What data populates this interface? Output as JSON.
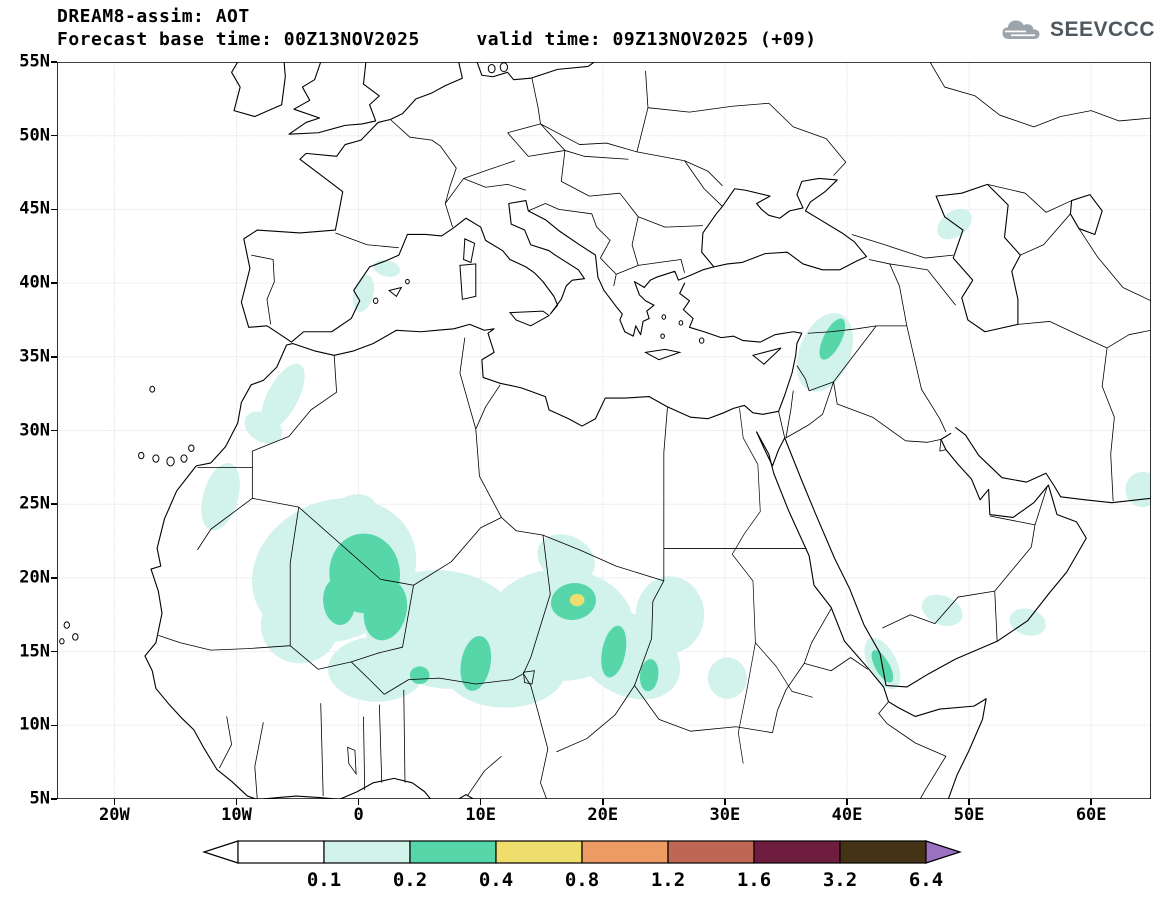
{
  "header": {
    "title": "DREAM8-assim: AOT",
    "subtitle": "Forecast base time: 00Z13NOV2025     valid time: 09Z13NOV2025 (+09)",
    "logo_text": "SEEVCCC"
  },
  "axes": {
    "lon_min": -24.7,
    "lon_max": 64.9,
    "lat_min": 5,
    "lat_max": 55,
    "x_ticks": [
      {
        "value": -20,
        "label": "20W"
      },
      {
        "value": -10,
        "label": "10W"
      },
      {
        "value": 0,
        "label": "0"
      },
      {
        "value": 10,
        "label": "10E"
      },
      {
        "value": 20,
        "label": "20E"
      },
      {
        "value": 30,
        "label": "30E"
      },
      {
        "value": 40,
        "label": "40E"
      },
      {
        "value": 50,
        "label": "50E"
      },
      {
        "value": 60,
        "label": "60E"
      }
    ],
    "y_ticks": [
      {
        "value": 55,
        "label": "55N"
      },
      {
        "value": 50,
        "label": "50N"
      },
      {
        "value": 45,
        "label": "45N"
      },
      {
        "value": 40,
        "label": "40N"
      },
      {
        "value": 35,
        "label": "35N"
      },
      {
        "value": 30,
        "label": "30N"
      },
      {
        "value": 25,
        "label": "25N"
      },
      {
        "value": 20,
        "label": "20N"
      },
      {
        "value": 15,
        "label": "15N"
      },
      {
        "value": 10,
        "label": "10N"
      },
      {
        "value": 5,
        "label": "5N"
      }
    ]
  },
  "colorbar": {
    "labels": [
      "0.1",
      "0.2",
      "0.4",
      "0.8",
      "1.2",
      "1.6",
      "3.2",
      "6.4"
    ],
    "segment_colors": [
      "#ffffff",
      "#d2f2ec",
      "#57d7a9",
      "#f0de6c",
      "#ec9b63",
      "#bf6753",
      "#6e1d3e",
      "#443317"
    ],
    "under_arrow_color": "#ffffff",
    "over_arrow_color": "#9a70c0",
    "outline_color": "#000000"
  },
  "chart_data": {
    "type": "filled_contour_map",
    "model": "DREAM8-assim",
    "variable": "AOT",
    "base_time": "00Z13NOV2025",
    "valid_time": "09Z13NOV2025",
    "forecast_offset": "+09",
    "contour_levels": [
      0.1,
      0.2,
      0.4,
      0.8,
      1.2,
      1.6,
      3.2,
      6.4
    ],
    "band_legend": {
      "1": "0.1-0.2",
      "2": "0.2-0.4",
      "3": "0.4-0.8"
    },
    "regions": [
      {
        "lon": -2.0,
        "lat": 20.5,
        "rx": 6.8,
        "ry": 4.8,
        "rot": -12,
        "level": 1
      },
      {
        "lon": 7.0,
        "lat": 16.5,
        "rx": 6.5,
        "ry": 4.0,
        "rot": 5,
        "level": 1
      },
      {
        "lon": 16.5,
        "lat": 16.8,
        "rx": 6.0,
        "ry": 3.8,
        "rot": 0,
        "level": 1
      },
      {
        "lon": 22.0,
        "lat": 14.8,
        "rx": 4.5,
        "ry": 2.8,
        "rot": 20,
        "level": 1
      },
      {
        "lon": 12.0,
        "lat": 13.8,
        "rx": 5.0,
        "ry": 2.6,
        "rot": 0,
        "level": 1
      },
      {
        "lon": 1.5,
        "lat": 13.8,
        "rx": 4.0,
        "ry": 2.2,
        "rot": 0,
        "level": 1
      },
      {
        "lon": -4.8,
        "lat": 16.8,
        "rx": 3.2,
        "ry": 2.6,
        "rot": 0,
        "level": 1
      },
      {
        "lon": 25.5,
        "lat": 17.5,
        "rx": 2.8,
        "ry": 2.6,
        "rot": 0,
        "level": 1
      },
      {
        "lon": 30.2,
        "lat": 13.2,
        "rx": 1.6,
        "ry": 1.4,
        "rot": 0,
        "level": 1
      },
      {
        "lon": -0.5,
        "lat": 24.0,
        "rx": 2.2,
        "ry": 1.6,
        "rot": -20,
        "level": 1
      },
      {
        "lon": 17.0,
        "lat": 21.3,
        "rx": 2.4,
        "ry": 1.6,
        "rot": 15,
        "level": 1
      },
      {
        "lon": -6.2,
        "lat": 32.3,
        "rx": 1.2,
        "ry": 2.6,
        "rot": 35,
        "level": 1
      },
      {
        "lon": -7.8,
        "lat": 30.2,
        "rx": 1.6,
        "ry": 1.0,
        "rot": 20,
        "level": 1
      },
      {
        "lon": -11.3,
        "lat": 25.5,
        "rx": 1.4,
        "ry": 2.4,
        "rot": 22,
        "level": 1
      },
      {
        "lon": 0.4,
        "lat": 39.3,
        "rx": 0.8,
        "ry": 1.3,
        "rot": 20,
        "level": 1
      },
      {
        "lon": 2.3,
        "lat": 41.0,
        "rx": 1.1,
        "ry": 0.55,
        "rot": 10,
        "level": 1
      },
      {
        "lon": 38.2,
        "lat": 35.3,
        "rx": 2.0,
        "ry": 2.9,
        "rot": 33,
        "level": 1
      },
      {
        "lon": 48.8,
        "lat": 44.0,
        "rx": 1.5,
        "ry": 0.9,
        "rot": -25,
        "level": 1
      },
      {
        "lon": 64.2,
        "lat": 26.0,
        "rx": 1.4,
        "ry": 1.2,
        "rot": 0,
        "level": 1
      },
      {
        "lon": 47.8,
        "lat": 17.8,
        "rx": 1.7,
        "ry": 1.0,
        "rot": 15,
        "level": 1
      },
      {
        "lon": 54.8,
        "lat": 17.0,
        "rx": 1.5,
        "ry": 0.9,
        "rot": 10,
        "level": 1
      },
      {
        "lon": 42.9,
        "lat": 14.2,
        "rx": 1.1,
        "ry": 2.0,
        "rot": -36,
        "level": 1
      },
      {
        "lon": 0.5,
        "lat": 20.3,
        "rx": 2.9,
        "ry": 2.7,
        "rot": 10,
        "level": 2
      },
      {
        "lon": 2.2,
        "lat": 17.8,
        "rx": 1.7,
        "ry": 2.1,
        "rot": 25,
        "level": 2
      },
      {
        "lon": -1.6,
        "lat": 18.4,
        "rx": 1.3,
        "ry": 1.6,
        "rot": -10,
        "level": 2
      },
      {
        "lon": 9.6,
        "lat": 14.2,
        "rx": 1.2,
        "ry": 1.9,
        "rot": 15,
        "level": 2
      },
      {
        "lon": 17.6,
        "lat": 18.4,
        "rx": 1.85,
        "ry": 1.25,
        "rot": -5,
        "level": 2
      },
      {
        "lon": 20.9,
        "lat": 15.0,
        "rx": 0.95,
        "ry": 1.8,
        "rot": 15,
        "level": 2
      },
      {
        "lon": 23.8,
        "lat": 13.4,
        "rx": 0.75,
        "ry": 1.1,
        "rot": 10,
        "level": 2
      },
      {
        "lon": 5.0,
        "lat": 13.4,
        "rx": 0.8,
        "ry": 0.6,
        "rot": 0,
        "level": 2
      },
      {
        "lon": 38.8,
        "lat": 36.2,
        "rx": 0.7,
        "ry": 1.6,
        "rot": 33,
        "level": 2
      },
      {
        "lon": 42.9,
        "lat": 14.0,
        "rx": 0.55,
        "ry": 1.3,
        "rot": -36,
        "level": 2
      },
      {
        "lon": 17.9,
        "lat": 18.5,
        "rx": 0.6,
        "ry": 0.42,
        "rot": 0,
        "level": 3
      }
    ]
  }
}
